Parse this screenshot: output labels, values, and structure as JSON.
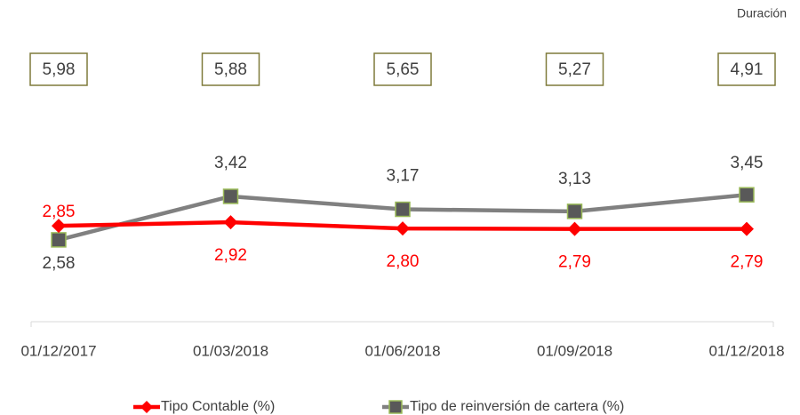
{
  "chart_data": {
    "type": "line",
    "categories": [
      "01/12/2017",
      "01/03/2018",
      "01/06/2018",
      "01/09/2018",
      "01/12/2018"
    ],
    "series": [
      {
        "name": "Tipo Contable (%)",
        "color": "#ff0000",
        "values": [
          2.85,
          2.92,
          2.8,
          2.79,
          2.79
        ],
        "value_labels": [
          "2,85",
          "2,92",
          "2,80",
          "2,79",
          "2,79"
        ]
      },
      {
        "name": "Tipo de reinversión de cartera (%)",
        "color": "#808080",
        "values": [
          2.58,
          3.42,
          3.17,
          3.13,
          3.45
        ],
        "value_labels": [
          "2,58",
          "3,42",
          "3,17",
          "3,13",
          "3,45"
        ]
      }
    ],
    "duration": {
      "label": "Duración",
      "values": [
        5.98,
        5.88,
        5.65,
        5.27,
        4.91
      ],
      "value_labels": [
        "5,98",
        "5,88",
        "5,65",
        "5,27",
        "4,91"
      ]
    },
    "ylim": [
      1,
      4.5
    ],
    "legend": "bottom"
  }
}
